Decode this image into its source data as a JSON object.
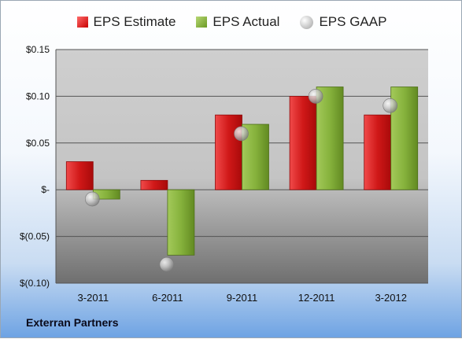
{
  "chart_data": {
    "type": "bar",
    "categories": [
      "3-2011",
      "6-2011",
      "9-2011",
      "12-2011",
      "3-2012"
    ],
    "series": [
      {
        "name": "EPS Estimate",
        "kind": "bar",
        "color": "#d21f1f",
        "values": [
          0.03,
          0.01,
          0.08,
          0.1,
          0.08
        ]
      },
      {
        "name": "EPS Actual",
        "kind": "bar",
        "color": "#7fad33",
        "values": [
          -0.01,
          -0.07,
          0.07,
          0.11,
          0.11
        ]
      },
      {
        "name": "EPS GAAP",
        "kind": "marker",
        "color": "#b5b5b5",
        "values": [
          -0.01,
          -0.08,
          0.06,
          0.1,
          0.09
        ]
      }
    ],
    "ylim": [
      -0.1,
      0.15
    ],
    "yticks": [
      {
        "value": 0.15,
        "label": "$0.15"
      },
      {
        "value": 0.1,
        "label": "$0.10"
      },
      {
        "value": 0.05,
        "label": "$0.05"
      },
      {
        "value": 0.0,
        "label": "$-"
      },
      {
        "value": -0.05,
        "label": "$(0.05)"
      },
      {
        "value": -0.1,
        "label": "$(0.10)"
      }
    ],
    "grid": true,
    "legend_position": "top",
    "company": "Exterran Partners"
  }
}
